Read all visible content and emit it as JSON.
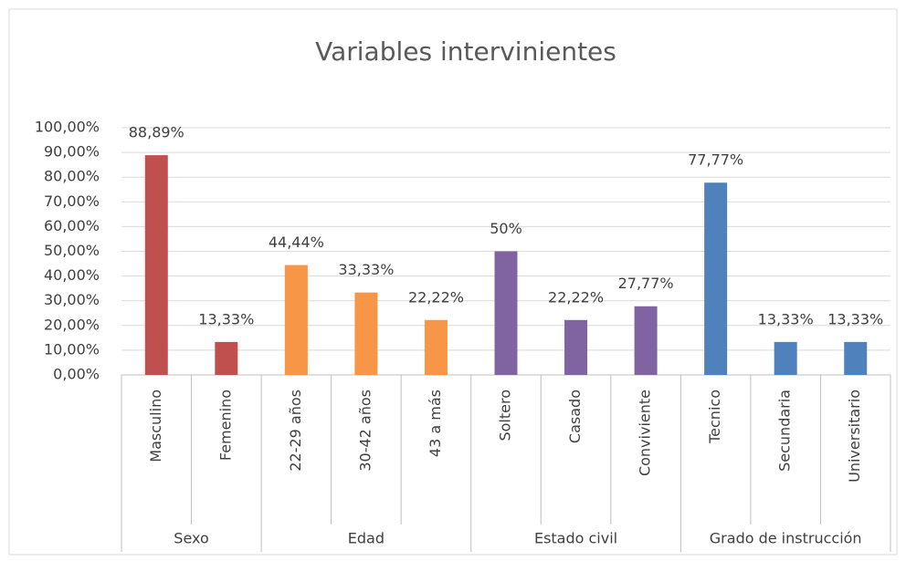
{
  "chart_data": {
    "type": "bar",
    "title": "Variables intervinientes",
    "series": [
      {
        "name": "Sexo",
        "color": "#c0504d",
        "categories": [
          "Masculino",
          "Femenino"
        ],
        "values": [
          88.89,
          13.33
        ],
        "value_labels": [
          "88,89%",
          "13,33%"
        ]
      },
      {
        "name": "Edad",
        "color": "#f79646",
        "categories": [
          "22-29 años",
          "30-42 años",
          "43 a más"
        ],
        "values": [
          44.44,
          33.33,
          22.22
        ],
        "value_labels": [
          "44,44%",
          "33,33%",
          "22,22%"
        ]
      },
      {
        "name": "Estado civil",
        "color": "#8064a2",
        "categories": [
          "Soltero",
          "Casado",
          "Conviviente"
        ],
        "values": [
          50,
          22.22,
          27.77
        ],
        "value_labels": [
          "50%",
          "22,22%",
          "27,77%"
        ]
      },
      {
        "name": "Grado de instrucción",
        "color": "#4f81bd",
        "categories": [
          "Tecnico",
          "Secundaria",
          "Universitario"
        ],
        "values": [
          77.77,
          13.33,
          13.33
        ],
        "value_labels": [
          "77,77%",
          "13,33%",
          "13,33%"
        ]
      }
    ],
    "ylim": [
      0,
      100
    ],
    "yticks": [
      {
        "value": 0,
        "label": "0,00%"
      },
      {
        "value": 10,
        "label": "10,00%"
      },
      {
        "value": 20,
        "label": "20,00%"
      },
      {
        "value": 30,
        "label": "30,00%"
      },
      {
        "value": 40,
        "label": "40,00%"
      },
      {
        "value": 50,
        "label": "50,00%"
      },
      {
        "value": 60,
        "label": "60,00%"
      },
      {
        "value": 70,
        "label": "70,00%"
      },
      {
        "value": 80,
        "label": "80,00%"
      },
      {
        "value": 90,
        "label": "90,00%"
      },
      {
        "value": 100,
        "label": "100,00%"
      }
    ],
    "grid": true
  }
}
